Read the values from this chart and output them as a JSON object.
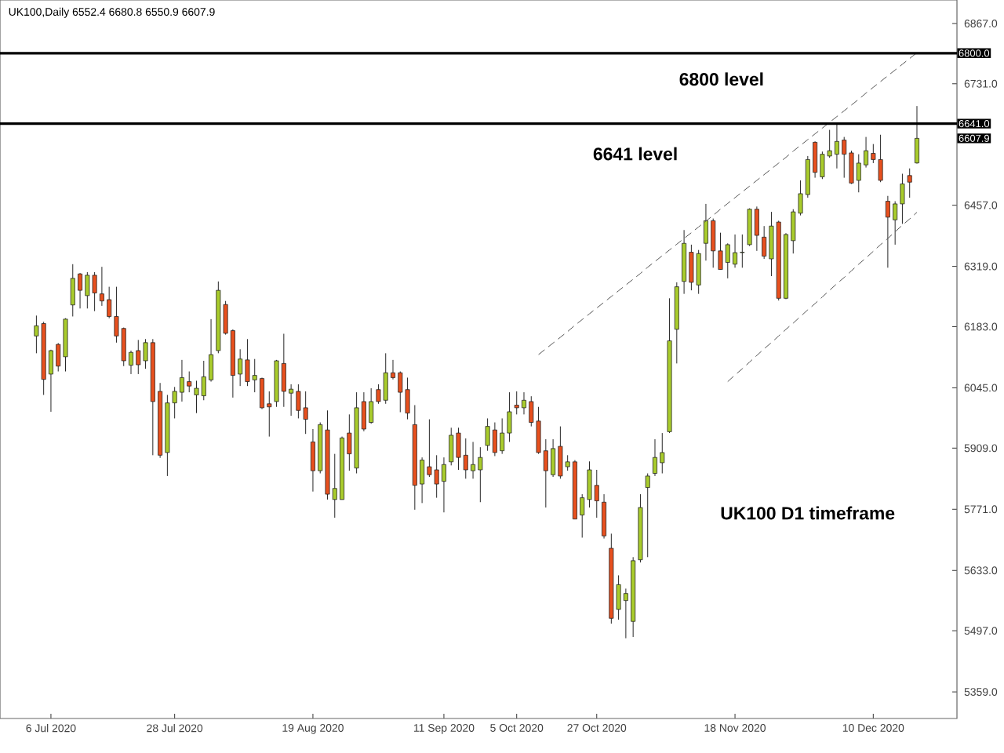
{
  "chart_data": {
    "type": "candlestick",
    "title": "UK100,Daily  6552.4 6680.8 6550.9 6607.9",
    "categories": [
      null,
      null,
      "6 Jul 2020",
      null,
      null,
      null,
      null,
      null,
      null,
      null,
      null,
      null,
      null,
      null,
      null,
      null,
      null,
      null,
      null,
      "28 Jul 2020",
      null,
      null,
      null,
      null,
      null,
      null,
      null,
      null,
      null,
      null,
      null,
      null,
      null,
      null,
      null,
      null,
      null,
      null,
      "19 Aug 2020",
      null,
      null,
      null,
      null,
      null,
      null,
      null,
      null,
      null,
      null,
      null,
      null,
      null,
      null,
      null,
      null,
      null,
      "11 Sep 2020",
      null,
      null,
      null,
      null,
      null,
      null,
      null,
      null,
      null,
      "5 Oct 2020",
      null,
      null,
      null,
      null,
      null,
      null,
      null,
      null,
      null,
      null,
      "27 Oct 2020",
      null,
      null,
      null,
      null,
      null,
      null,
      null,
      null,
      null,
      null,
      null,
      null,
      null,
      null,
      null,
      null,
      null,
      null,
      "18 Nov 2020",
      null,
      null,
      null,
      null,
      null,
      null,
      null,
      null,
      null,
      null,
      null,
      null,
      null,
      null,
      null,
      null,
      null,
      null,
      "10 Dec 2020",
      null,
      null,
      null,
      null,
      null,
      null
    ],
    "ohlc": [
      [
        6162,
        6208,
        6123,
        6185
      ],
      [
        6190,
        6194,
        6029,
        6064
      ],
      [
        6076,
        6131,
        5991,
        6129
      ],
      [
        6143,
        6146,
        6082,
        6094
      ],
      [
        6115,
        6202,
        6082,
        6200
      ],
      [
        6232,
        6324,
        6206,
        6292
      ],
      [
        6302,
        6304,
        6224,
        6265
      ],
      [
        6253,
        6306,
        6224,
        6299
      ],
      [
        6299,
        6306,
        6218,
        6259
      ],
      [
        6257,
        6318,
        6230,
        6241
      ],
      [
        6244,
        6273,
        6202,
        6206
      ],
      [
        6206,
        6273,
        6147,
        6162
      ],
      [
        6179,
        6181,
        6094,
        6106
      ],
      [
        6096,
        6129,
        6076,
        6125
      ],
      [
        6129,
        6153,
        6076,
        6097
      ],
      [
        6106,
        6155,
        6088,
        6147
      ],
      [
        6147,
        6155,
        5893,
        6014
      ],
      [
        6037,
        6056,
        5887,
        5893
      ],
      [
        5899,
        6029,
        5846,
        6011
      ],
      [
        6011,
        6047,
        5976,
        6037
      ],
      [
        6035,
        6108,
        6014,
        6068
      ],
      [
        6059,
        6082,
        6035,
        6049
      ],
      [
        6029,
        6061,
        5988,
        6044
      ],
      [
        6027,
        6106,
        6017,
        6070
      ],
      [
        6063,
        6200,
        6059,
        6120
      ],
      [
        6129,
        6285,
        6123,
        6265
      ],
      [
        6233,
        6241,
        6165,
        6168
      ],
      [
        6174,
        6177,
        6023,
        6073
      ],
      [
        6076,
        6132,
        6049,
        6110
      ],
      [
        6108,
        6155,
        6049,
        6059
      ],
      [
        6063,
        6110,
        6035,
        6073
      ],
      [
        6066,
        6068,
        5997,
        6000
      ],
      [
        6009,
        6037,
        5935,
        6002
      ],
      [
        6014,
        6108,
        6002,
        6106
      ],
      [
        6100,
        6167,
        6002,
        6037
      ],
      [
        6033,
        6053,
        5982,
        6042
      ],
      [
        6037,
        6053,
        5976,
        5994
      ],
      [
        6000,
        6037,
        5941,
        5974
      ],
      [
        5923,
        5952,
        5811,
        5858
      ],
      [
        5858,
        5967,
        5852,
        5962
      ],
      [
        5950,
        5994,
        5793,
        5805
      ],
      [
        5793,
        5896,
        5752,
        5818
      ],
      [
        5793,
        5935,
        5793,
        5932
      ],
      [
        5943,
        5985,
        5858,
        5896
      ],
      [
        5864,
        6035,
        5852,
        6000
      ],
      [
        6014,
        6035,
        5947,
        5952
      ],
      [
        5967,
        6044,
        5964,
        6014
      ],
      [
        6041,
        6053,
        6009,
        6014
      ],
      [
        6017,
        6123,
        6009,
        6079
      ],
      [
        6079,
        6108,
        6064,
        6068
      ],
      [
        6079,
        6082,
        5990,
        6035
      ],
      [
        6041,
        6068,
        5974,
        5988
      ],
      [
        5962,
        6006,
        5770,
        5825
      ],
      [
        5828,
        5888,
        5785,
        5882
      ],
      [
        5867,
        5974,
        5844,
        5849
      ],
      [
        5860,
        5893,
        5797,
        5828
      ],
      [
        5834,
        5888,
        5764,
        5872
      ],
      [
        5878,
        5955,
        5870,
        5938
      ],
      [
        5943,
        5955,
        5860,
        5888
      ],
      [
        5893,
        5931,
        5840,
        5860
      ],
      [
        5858,
        5923,
        5840,
        5872
      ],
      [
        5860,
        5911,
        5787,
        5888
      ],
      [
        5915,
        5976,
        5903,
        5958
      ],
      [
        5950,
        5967,
        5891,
        5899
      ],
      [
        5903,
        5976,
        5896,
        5943
      ],
      [
        5943,
        6035,
        5923,
        5991
      ],
      [
        6006,
        6037,
        5985,
        6000
      ],
      [
        6000,
        6035,
        5985,
        6017
      ],
      [
        6014,
        6026,
        5958,
        5967
      ],
      [
        5970,
        6002,
        5896,
        5899
      ],
      [
        5903,
        5929,
        5775,
        5858
      ],
      [
        5849,
        5929,
        5844,
        5908
      ],
      [
        5913,
        5958,
        5840,
        5846
      ],
      [
        5867,
        5893,
        5858,
        5878
      ],
      [
        5878,
        5882,
        5749,
        5749
      ],
      [
        5758,
        5805,
        5707,
        5797
      ],
      [
        5793,
        5879,
        5775,
        5860
      ],
      [
        5825,
        5860,
        5752,
        5790
      ],
      [
        5787,
        5805,
        5705,
        5711
      ],
      [
        5683,
        5716,
        5513,
        5525
      ],
      [
        5545,
        5622,
        5522,
        5601
      ],
      [
        5565,
        5592,
        5480,
        5581
      ],
      [
        5518,
        5663,
        5483,
        5655
      ],
      [
        5657,
        5805,
        5651,
        5775
      ],
      [
        5820,
        5852,
        5663,
        5846
      ],
      [
        5852,
        5929,
        5846,
        5888
      ],
      [
        5876,
        5943,
        5852,
        5899
      ],
      [
        5946,
        6247,
        5943,
        6151
      ],
      [
        6177,
        6283,
        6100,
        6273
      ],
      [
        6285,
        6401,
        6257,
        6371
      ],
      [
        6351,
        6368,
        6265,
        6283
      ],
      [
        6277,
        6356,
        6257,
        6348
      ],
      [
        6371,
        6460,
        6332,
        6422
      ],
      [
        6422,
        6427,
        6316,
        6354
      ],
      [
        6354,
        6395,
        6312,
        6312
      ],
      [
        6328,
        6371,
        6292,
        6368
      ],
      [
        6324,
        6391,
        6316,
        6350
      ],
      [
        6350,
        6391,
        6316,
        6351
      ],
      [
        6368,
        6450,
        6365,
        6448
      ],
      [
        6448,
        6454,
        6354,
        6389
      ],
      [
        6385,
        6410,
        6336,
        6342
      ],
      [
        6336,
        6442,
        6297,
        6410
      ],
      [
        6419,
        6422,
        6242,
        6247
      ],
      [
        6247,
        6394,
        6245,
        6391
      ],
      [
        6377,
        6448,
        6348,
        6442
      ],
      [
        6439,
        6513,
        6434,
        6483
      ],
      [
        6481,
        6568,
        6474,
        6560
      ],
      [
        6599,
        6601,
        6519,
        6531
      ],
      [
        6521,
        6578,
        6516,
        6572
      ],
      [
        6568,
        6627,
        6564,
        6580
      ],
      [
        6572,
        6639,
        6540,
        6601
      ],
      [
        6604,
        6611,
        6519,
        6572
      ],
      [
        6575,
        6580,
        6505,
        6507
      ],
      [
        6513,
        6572,
        6486,
        6552
      ],
      [
        6548,
        6611,
        6542,
        6580
      ],
      [
        6574,
        6595,
        6552,
        6560
      ],
      [
        6560,
        6616,
        6509,
        6513
      ],
      [
        6466,
        6478,
        6316,
        6430
      ],
      [
        6424,
        6466,
        6368,
        6460
      ],
      [
        6460,
        6528,
        6415,
        6505
      ],
      [
        6524,
        6540,
        6474,
        6509
      ],
      [
        6552.4,
        6680.8,
        6550.9,
        6607.9
      ]
    ],
    "colors": [
      "#a9cc2c",
      "#e8501e",
      "#a9cc2c",
      "#e8501e",
      "#a9cc2c",
      "#a9cc2c",
      "#e8501e",
      "#a9cc2c",
      "#e8501e",
      "#e8501e",
      "#e8501e",
      "#e8501e",
      "#e8501e",
      "#a9cc2c",
      "#e8501e",
      "#a9cc2c",
      "#e8501e",
      "#e8501e",
      "#a9cc2c",
      "#a9cc2c",
      "#a9cc2c",
      "#e8501e",
      "#a9cc2c",
      "#a9cc2c",
      "#a9cc2c",
      "#a9cc2c",
      "#e8501e",
      "#e8501e",
      "#a9cc2c",
      "#e8501e",
      "#a9cc2c",
      "#e8501e",
      "#e8501e",
      "#a9cc2c",
      "#e8501e",
      "#a9cc2c",
      "#e8501e",
      "#e8501e",
      "#e8501e",
      "#a9cc2c",
      "#e8501e",
      "#a9cc2c",
      "#a9cc2c",
      "#e8501e",
      "#a9cc2c",
      "#e8501e",
      "#a9cc2c",
      "#e8501e",
      "#a9cc2c",
      "#e8501e",
      "#e8501e",
      "#e8501e",
      "#e8501e",
      "#a9cc2c",
      "#e8501e",
      "#e8501e",
      "#a9cc2c",
      "#a9cc2c",
      "#e8501e",
      "#e8501e",
      "#a9cc2c",
      "#a9cc2c",
      "#a9cc2c",
      "#e8501e",
      "#a9cc2c",
      "#a9cc2c",
      "#e8501e",
      "#a9cc2c",
      "#e8501e",
      "#e8501e",
      "#e8501e",
      "#a9cc2c",
      "#e8501e",
      "#a9cc2c",
      "#e8501e",
      "#a9cc2c",
      "#a9cc2c",
      "#e8501e",
      "#e8501e",
      "#e8501e",
      "#a9cc2c",
      "#a9cc2c",
      "#a9cc2c",
      "#a9cc2c",
      "#a9cc2c",
      "#a9cc2c",
      "#a9cc2c",
      "#a9cc2c",
      "#a9cc2c",
      "#a9cc2c",
      "#e8501e",
      "#a9cc2c",
      "#a9cc2c",
      "#e8501e",
      "#e8501e",
      "#a9cc2c",
      "#a9cc2c",
      "#a9cc2c",
      "#a9cc2c",
      "#e8501e",
      "#e8501e",
      "#a9cc2c",
      "#e8501e",
      "#a9cc2c",
      "#a9cc2c",
      "#a9cc2c",
      "#a9cc2c",
      "#e8501e",
      "#a9cc2c",
      "#a9cc2c",
      "#a9cc2c",
      "#e8501e",
      "#e8501e",
      "#a9cc2c",
      "#a9cc2c",
      "#e8501e",
      "#e8501e",
      "#e8501e",
      "#a9cc2c",
      "#a9cc2c",
      "#e8501e",
      "#a9cc2c"
    ],
    "series": [
      {
        "type": "line",
        "values": [
          null,
          null,
          null,
          null,
          null,
          null,
          null,
          null,
          null,
          null,
          null,
          null,
          null,
          null,
          null,
          null,
          null,
          null,
          null,
          null,
          null,
          null,
          null,
          null,
          null,
          null,
          null,
          null,
          null,
          null,
          null,
          null,
          null,
          null,
          null,
          null,
          null,
          null,
          null,
          null,
          null,
          null,
          null,
          null,
          null,
          null,
          null,
          null,
          null,
          null,
          null,
          null,
          null,
          null,
          null,
          null,
          null,
          null,
          null,
          null,
          null,
          null,
          null,
          null,
          null,
          null,
          null,
          null,
          null,
          6120,
          6133,
          6146,
          6159,
          6172,
          6186,
          6199,
          6212,
          6225,
          6238,
          6251,
          6264,
          6277,
          6290,
          6303,
          6317,
          6330,
          6343,
          6356,
          6369,
          6382,
          6395,
          6408,
          6421,
          6434,
          6448,
          6461,
          6474,
          6487,
          6500,
          6513,
          6526,
          6539,
          6552,
          6565,
          6579,
          6592,
          6605,
          6618,
          6631,
          6644,
          6657,
          6670,
          6683,
          6696,
          6710,
          6723,
          6736,
          6749,
          6762,
          6775,
          6788,
          6801
        ],
        "color": "#555555",
        "line_style": "dashed"
      },
      {
        "type": "line",
        "values": [
          null,
          null,
          null,
          null,
          null,
          null,
          null,
          null,
          null,
          null,
          null,
          null,
          null,
          null,
          null,
          null,
          null,
          null,
          null,
          null,
          null,
          null,
          null,
          null,
          null,
          null,
          null,
          null,
          null,
          null,
          null,
          null,
          null,
          null,
          null,
          null,
          null,
          null,
          null,
          null,
          null,
          null,
          null,
          null,
          null,
          null,
          null,
          null,
          null,
          null,
          null,
          null,
          null,
          null,
          null,
          null,
          null,
          null,
          null,
          null,
          null,
          null,
          null,
          null,
          null,
          null,
          null,
          null,
          null,
          null,
          null,
          null,
          null,
          null,
          null,
          null,
          null,
          null,
          null,
          null,
          null,
          null,
          null,
          null,
          null,
          null,
          null,
          null,
          null,
          null,
          null,
          null,
          null,
          null,
          null,
          6059,
          6074,
          6088,
          6103,
          6118,
          6133,
          6147,
          6162,
          6177,
          6191,
          6206,
          6221,
          6235,
          6250,
          6265,
          6280,
          6294,
          6309,
          6324,
          6338,
          6353,
          6368,
          6382,
          6397,
          6412,
          6426,
          6441
        ],
        "color": "#555555",
        "line_style": "dashed"
      }
    ],
    "ylim": [
      5299,
      6920
    ],
    "yticks": [
      {
        "value": 5359,
        "label": "5359.0"
      },
      {
        "value": 5497,
        "label": "5497.0"
      },
      {
        "value": 5633,
        "label": "5633.0"
      },
      {
        "value": 5771,
        "label": "5771.0"
      },
      {
        "value": 5909,
        "label": "5909.0"
      },
      {
        "value": 6045,
        "label": "6045.0"
      },
      {
        "value": 6183,
        "label": "6183.0"
      },
      {
        "value": 6319,
        "label": "6319.0"
      },
      {
        "value": 6457,
        "label": "6457.0"
      },
      {
        "value": 6731,
        "label": "6731.0"
      },
      {
        "value": 6867,
        "label": "6867.0"
      }
    ],
    "ref_lines": [
      {
        "axis": "y",
        "value": 6800,
        "label": "6800.0",
        "color": "#000000"
      },
      {
        "axis": "y",
        "value": 6641,
        "label": "6641.0",
        "color": "#000000"
      }
    ],
    "annotations": [
      "6800 level",
      "6641 level",
      "UK100 D1 timeframe",
      "6607.9"
    ]
  }
}
